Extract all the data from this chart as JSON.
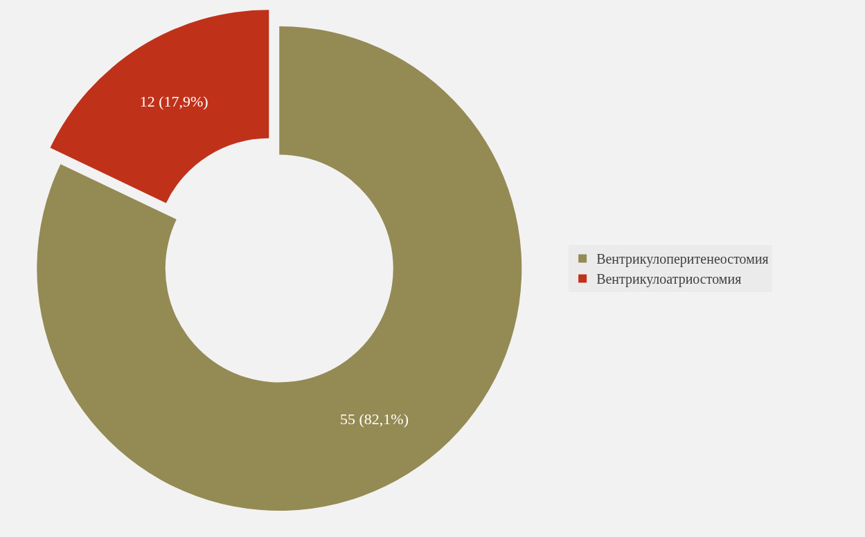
{
  "chart_data": {
    "type": "donut",
    "categories": [
      "Вентрикулоперитенеостомия",
      "Вентрикулоатриостомия"
    ],
    "values": [
      55,
      12
    ],
    "colors": [
      "#948a54",
      "#c0311a"
    ],
    "value_labels": [
      "55 (82,1%)",
      "12 (17,9%)"
    ],
    "legend": "right"
  }
}
